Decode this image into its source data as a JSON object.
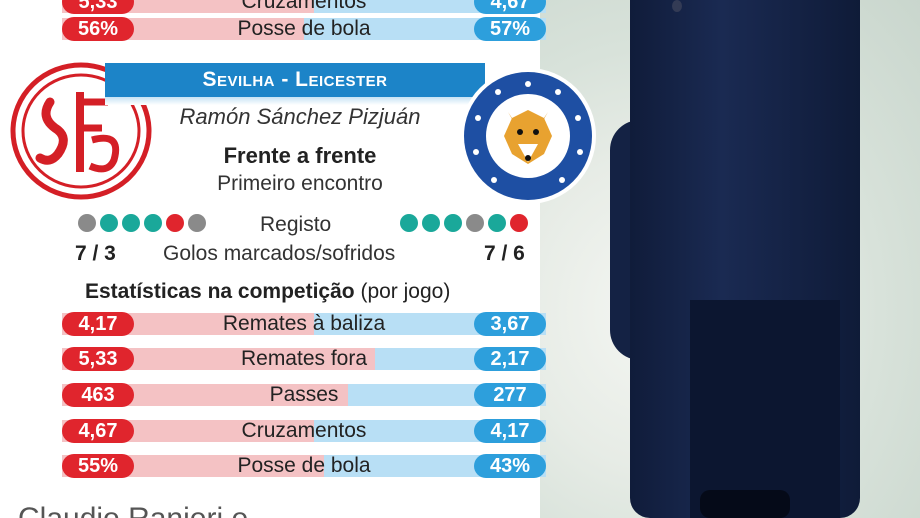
{
  "top_rows": [
    {
      "left": "5,33",
      "label": "Cruzamentos",
      "right": "4,67",
      "left_share": 0.53
    },
    {
      "left": "56%",
      "label": "Posse de bola",
      "right": "57%",
      "left_share": 0.5
    }
  ],
  "match": {
    "title": "Sevilha - Leicester",
    "stadium": "Ramón Sánchez Pizjuán",
    "h2h_title": "Frente a frente",
    "h2h_text": "Primeiro encontro"
  },
  "form": {
    "label": "Registo",
    "home": [
      "#8a8a8a",
      "#1aa89a",
      "#1aa89a",
      "#1aa89a",
      "#e0252d",
      "#8a8a8a"
    ],
    "away": [
      "#1aa89a",
      "#1aa89a",
      "#1aa89a",
      "#8a8a8a",
      "#1aa89a",
      "#e0252d"
    ]
  },
  "goals": {
    "home": "7 / 3",
    "label": "Golos marcados/sofridos",
    "away": "7 / 6"
  },
  "stats_header": {
    "bold": "Estatísticas na competição",
    "normal": "(por jogo)"
  },
  "stats": [
    {
      "left": "4,17",
      "label": "Remates à baliza",
      "right": "3,67",
      "left_share": 0.53
    },
    {
      "left": "5,33",
      "label": "Remates fora",
      "right": "2,17",
      "left_share": 0.71
    },
    {
      "left": "463",
      "label": "Passes",
      "right": "277",
      "left_share": 0.63
    },
    {
      "left": "4,67",
      "label": "Cruzamentos",
      "right": "4,17",
      "left_share": 0.53
    },
    {
      "left": "55%",
      "label": "Posse de bola",
      "right": "43%",
      "left_share": 0.56
    }
  ],
  "caption": "Claudio Ranieri e ...",
  "colors": {
    "home": "#e0252d",
    "away": "#2d9fdc",
    "banner": "#1c84c8"
  }
}
